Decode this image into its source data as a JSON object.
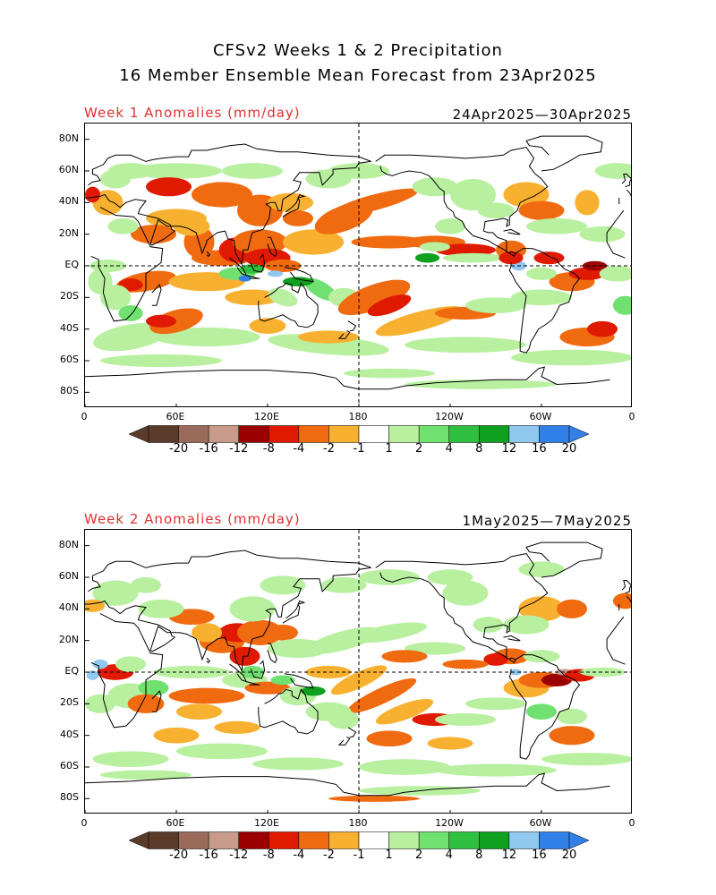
{
  "title": {
    "line1": "CFSv2 Weeks 1 & 2 Precipitation",
    "line2": "16 Member Ensemble Mean Forecast from 23Apr2025"
  },
  "panels": [
    {
      "label": "Week 1 Anomalies (mm/day)",
      "date_range": "24Apr2025—30Apr2025"
    },
    {
      "label": "Week 2 Anomalies (mm/day)",
      "date_range": "1May2025—7May2025"
    }
  ],
  "axes": {
    "lat_labels": [
      "80N",
      "60N",
      "40N",
      "20N",
      "EQ",
      "20S",
      "40S",
      "60S",
      "80S"
    ],
    "lon_labels": [
      "0",
      "60E",
      "120E",
      "180",
      "120W",
      "60W",
      "0"
    ]
  },
  "colorbar": {
    "labels": [
      "-20",
      "-16",
      "-12",
      "-8",
      "-4",
      "-2",
      "-1",
      "1",
      "2",
      "4",
      "8",
      "12",
      "16",
      "20"
    ],
    "colors": [
      "#5a3b2a",
      "#9a6b5a",
      "#c89a8a",
      "#9a0000",
      "#e01a00",
      "#f06a10",
      "#f8b030",
      "#ffffff",
      "#b8f0a0",
      "#70e070",
      "#30c040",
      "#10a020",
      "#90c8f0",
      "#3080e8"
    ],
    "end_left_color": "#5a3b2a",
    "end_right_color": "#3080e8"
  }
}
